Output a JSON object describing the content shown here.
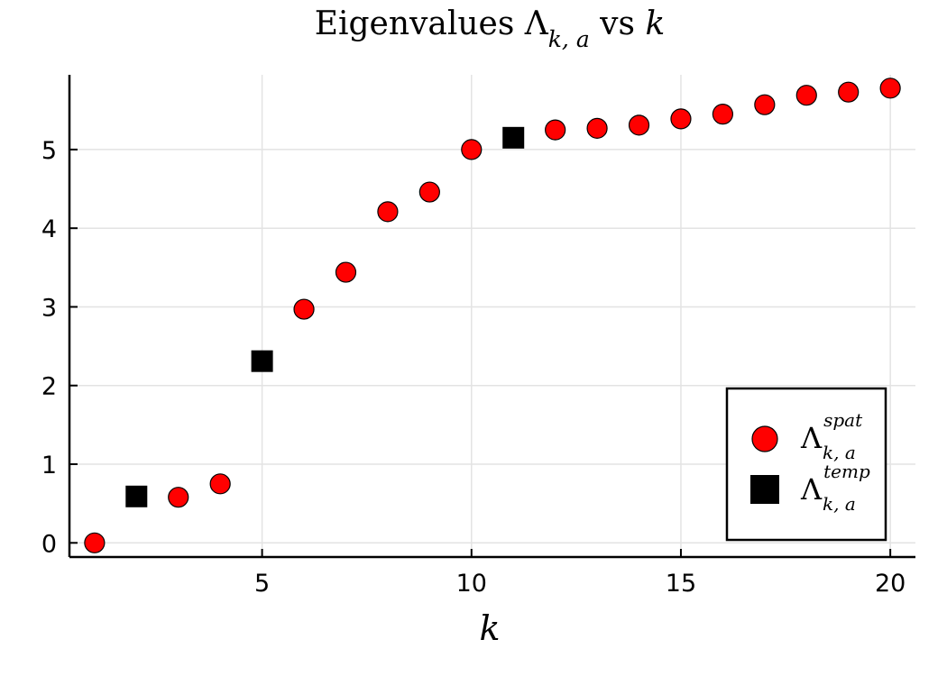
{
  "chart_data": {
    "type": "scatter",
    "title": {
      "prefix": "Eigenvalues ",
      "symbol": "Λ",
      "symbol_subscript": "k, a",
      "middle": " vs ",
      "variable": "k"
    },
    "xlabel": "k",
    "ylabel": "",
    "xlim": [
      0.4,
      20.6
    ],
    "ylim": [
      -0.18,
      5.95
    ],
    "xticks": [
      5,
      10,
      15,
      20
    ],
    "yticks": [
      0,
      1,
      2,
      3,
      4,
      5
    ],
    "grid": true,
    "legend_position": "bottom-right",
    "series": [
      {
        "symbol": "Λ",
        "superscript": "spat",
        "subscript": "k, a",
        "marker": "circle",
        "color": "#ff0000",
        "points": [
          {
            "x": 1,
            "y": 0.0
          },
          {
            "x": 3,
            "y": 0.58
          },
          {
            "x": 4,
            "y": 0.75
          },
          {
            "x": 6,
            "y": 2.97
          },
          {
            "x": 7,
            "y": 3.44
          },
          {
            "x": 8,
            "y": 4.21
          },
          {
            "x": 9,
            "y": 4.46
          },
          {
            "x": 10,
            "y": 5.0
          },
          {
            "x": 12,
            "y": 5.25
          },
          {
            "x": 13,
            "y": 5.27
          },
          {
            "x": 14,
            "y": 5.31
          },
          {
            "x": 15,
            "y": 5.39
          },
          {
            "x": 16,
            "y": 5.45
          },
          {
            "x": 17,
            "y": 5.57
          },
          {
            "x": 18,
            "y": 5.69
          },
          {
            "x": 19,
            "y": 5.73
          },
          {
            "x": 20,
            "y": 5.78
          }
        ]
      },
      {
        "symbol": "Λ",
        "superscript": "temp",
        "subscript": "k, a",
        "marker": "square",
        "color": "#000000",
        "points": [
          {
            "x": 2,
            "y": 0.59
          },
          {
            "x": 5,
            "y": 2.31
          },
          {
            "x": 11,
            "y": 5.15
          }
        ]
      }
    ]
  }
}
